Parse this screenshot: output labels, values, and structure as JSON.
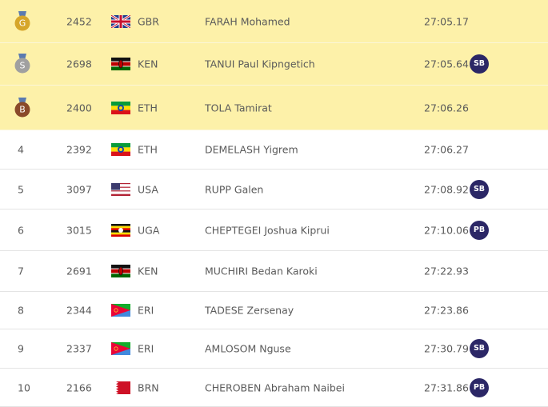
{
  "table": {
    "rows": [
      {
        "medal": "G",
        "bib": 2452,
        "country": "GBR",
        "name": "FARAH Mohamed",
        "time": "27:05.17"
      },
      {
        "medal": "S",
        "bib": 2698,
        "country": "KEN",
        "name": "TANUI Paul Kipngetich",
        "time": "27:05.64",
        "badge": "SB"
      },
      {
        "medal": "B",
        "bib": 2400,
        "country": "ETH",
        "name": "TOLA Tamirat",
        "time": "27:06.26"
      },
      {
        "rank": 4,
        "bib": 2392,
        "country": "ETH",
        "name": "DEMELASH Yigrem",
        "time": "27:06.27"
      },
      {
        "rank": 5,
        "bib": 3097,
        "country": "USA",
        "name": "RUPP Galen",
        "time": "27:08.92",
        "badge": "SB"
      },
      {
        "rank": 6,
        "bib": 3015,
        "country": "UGA",
        "name": "CHEPTEGEI Joshua Kiprui",
        "time": "27:10.06",
        "badge": "PB"
      },
      {
        "rank": 7,
        "bib": 2691,
        "country": "KEN",
        "name": "MUCHIRI Bedan Karoki",
        "time": "27:22.93"
      },
      {
        "rank": 8,
        "bib": 2344,
        "country": "ERI",
        "name": "TADESE Zersenay",
        "time": "27:23.86"
      },
      {
        "rank": 9,
        "bib": 2337,
        "country": "ERI",
        "name": "AMLOSOM Nguse",
        "time": "27:30.79",
        "badge": "SB"
      },
      {
        "rank": 10,
        "bib": 2166,
        "country": "BRN",
        "name": "CHEROBEN Abraham Naibei",
        "time": "27:31.86",
        "badge": "PB"
      }
    ]
  }
}
